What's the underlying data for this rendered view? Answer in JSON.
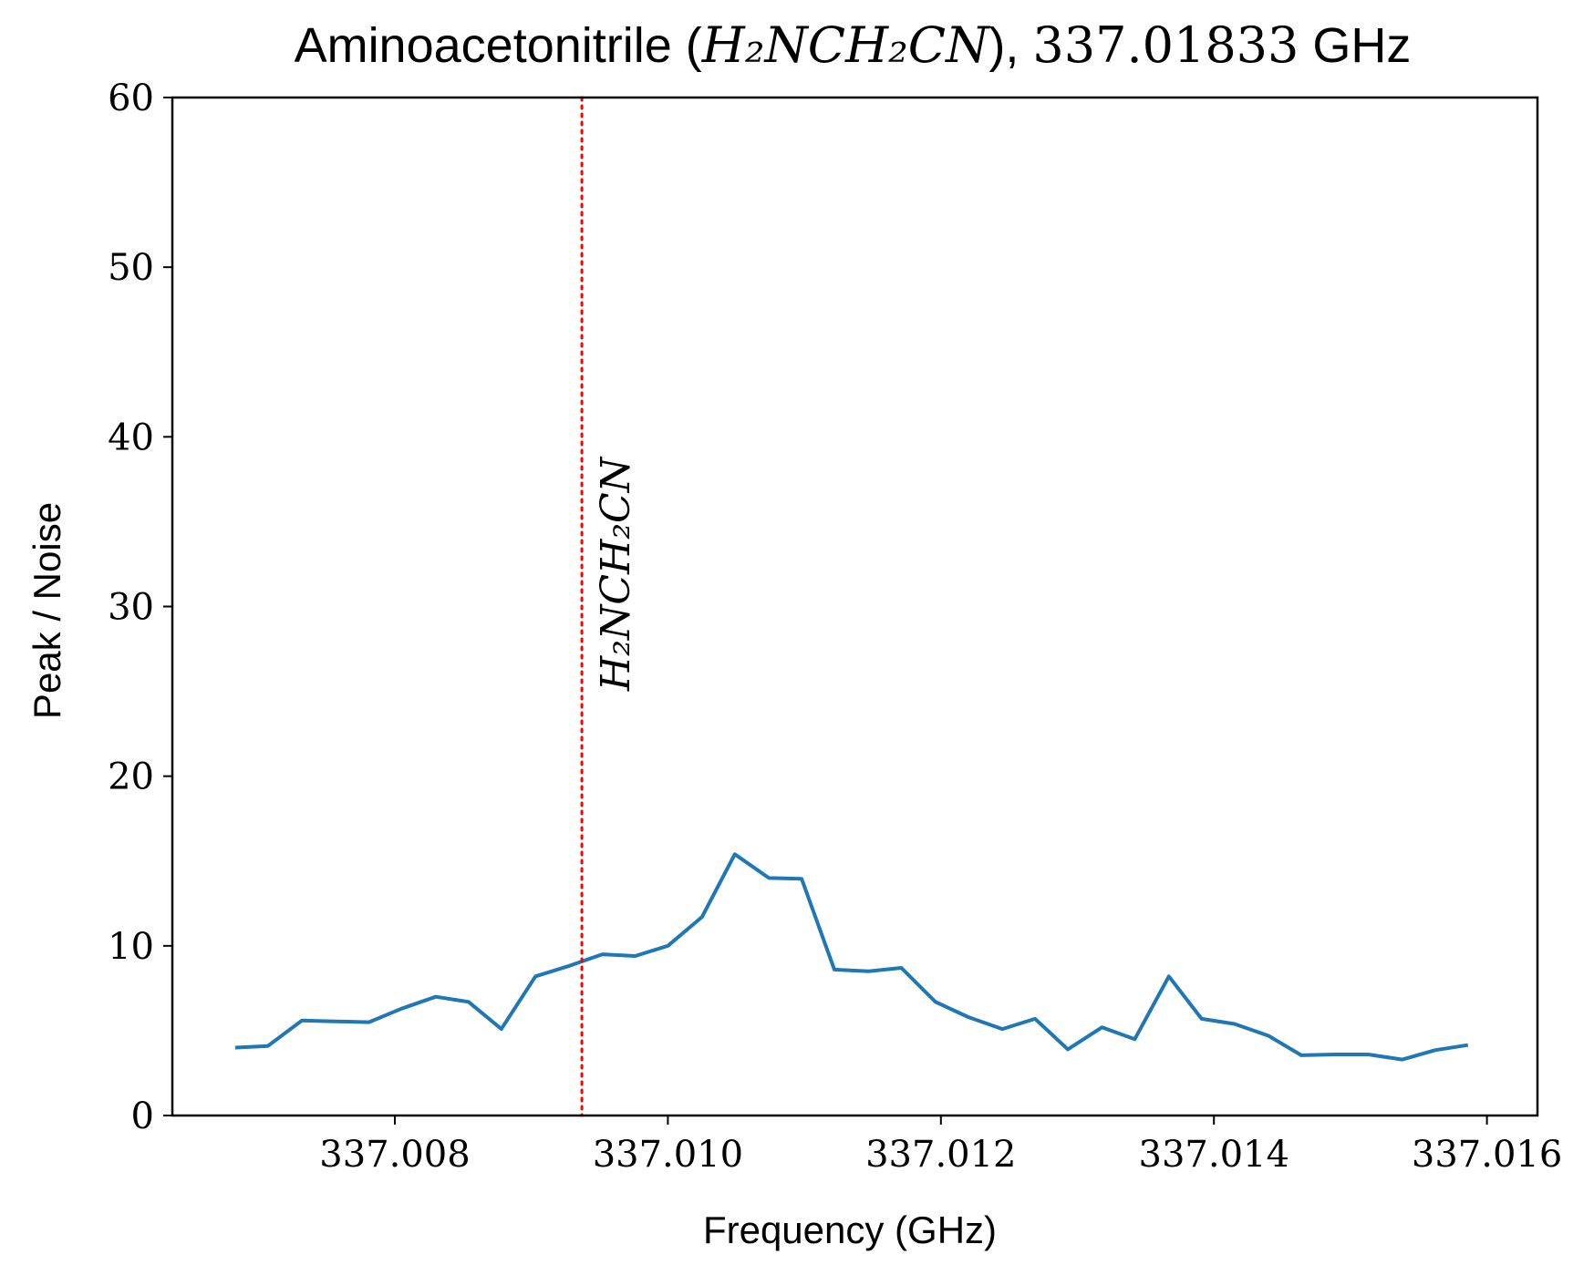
{
  "chart_data": {
    "type": "line",
    "title": {
      "prefix": "Aminoacetonitrile (",
      "formula": "H₂NCH₂CN",
      "suffix": "), ",
      "frequency": "337.01833",
      "unit": " GHz"
    },
    "xlabel": "Frequency (GHz)",
    "ylabel": "Peak / Noise",
    "xlim": [
      337.00637,
      337.01637
    ],
    "ylim": [
      0,
      60
    ],
    "xticks": [
      337.008,
      337.01,
      337.012,
      337.014,
      337.016
    ],
    "xtick_labels": [
      "337.008",
      "337.010",
      "337.012",
      "337.014",
      "337.016"
    ],
    "yticks": [
      0,
      10,
      20,
      30,
      40,
      50,
      60
    ],
    "ytick_labels": [
      "0",
      "10",
      "20",
      "30",
      "40",
      "50",
      "60"
    ],
    "grid": false,
    "series": [
      {
        "color": "#1f77b4",
        "x": [
          337.00683,
          337.00707,
          337.00732,
          337.00756,
          337.00781,
          337.00805,
          337.0083,
          337.00854,
          337.00878,
          337.00903,
          337.00927,
          337.00952,
          337.00976,
          337.01,
          337.01025,
          337.01049,
          337.01074,
          337.01098,
          337.01122,
          337.01147,
          337.01171,
          337.01196,
          337.0122,
          337.01245,
          337.01269,
          337.01293,
          337.01318,
          337.01342,
          337.01367,
          337.01391,
          337.01415,
          337.0144,
          337.01464,
          337.01489,
          337.01513,
          337.01538,
          337.01562,
          337.01586
        ],
        "y": [
          4.0,
          4.1,
          5.6,
          5.55,
          5.5,
          6.3,
          7.0,
          6.7,
          5.1,
          8.2,
          8.8,
          9.5,
          9.4,
          10.0,
          11.7,
          15.4,
          14.0,
          13.95,
          8.6,
          8.5,
          8.7,
          6.7,
          5.8,
          5.1,
          5.7,
          3.9,
          5.2,
          4.5,
          8.2,
          5.7,
          5.4,
          4.7,
          3.55,
          3.6,
          3.6,
          3.3,
          3.85,
          4.15
        ]
      }
    ],
    "vline": {
      "x": 337.00937,
      "color": "#ff0000",
      "style": "dotted",
      "label": "H₂NCH₂CN"
    }
  }
}
